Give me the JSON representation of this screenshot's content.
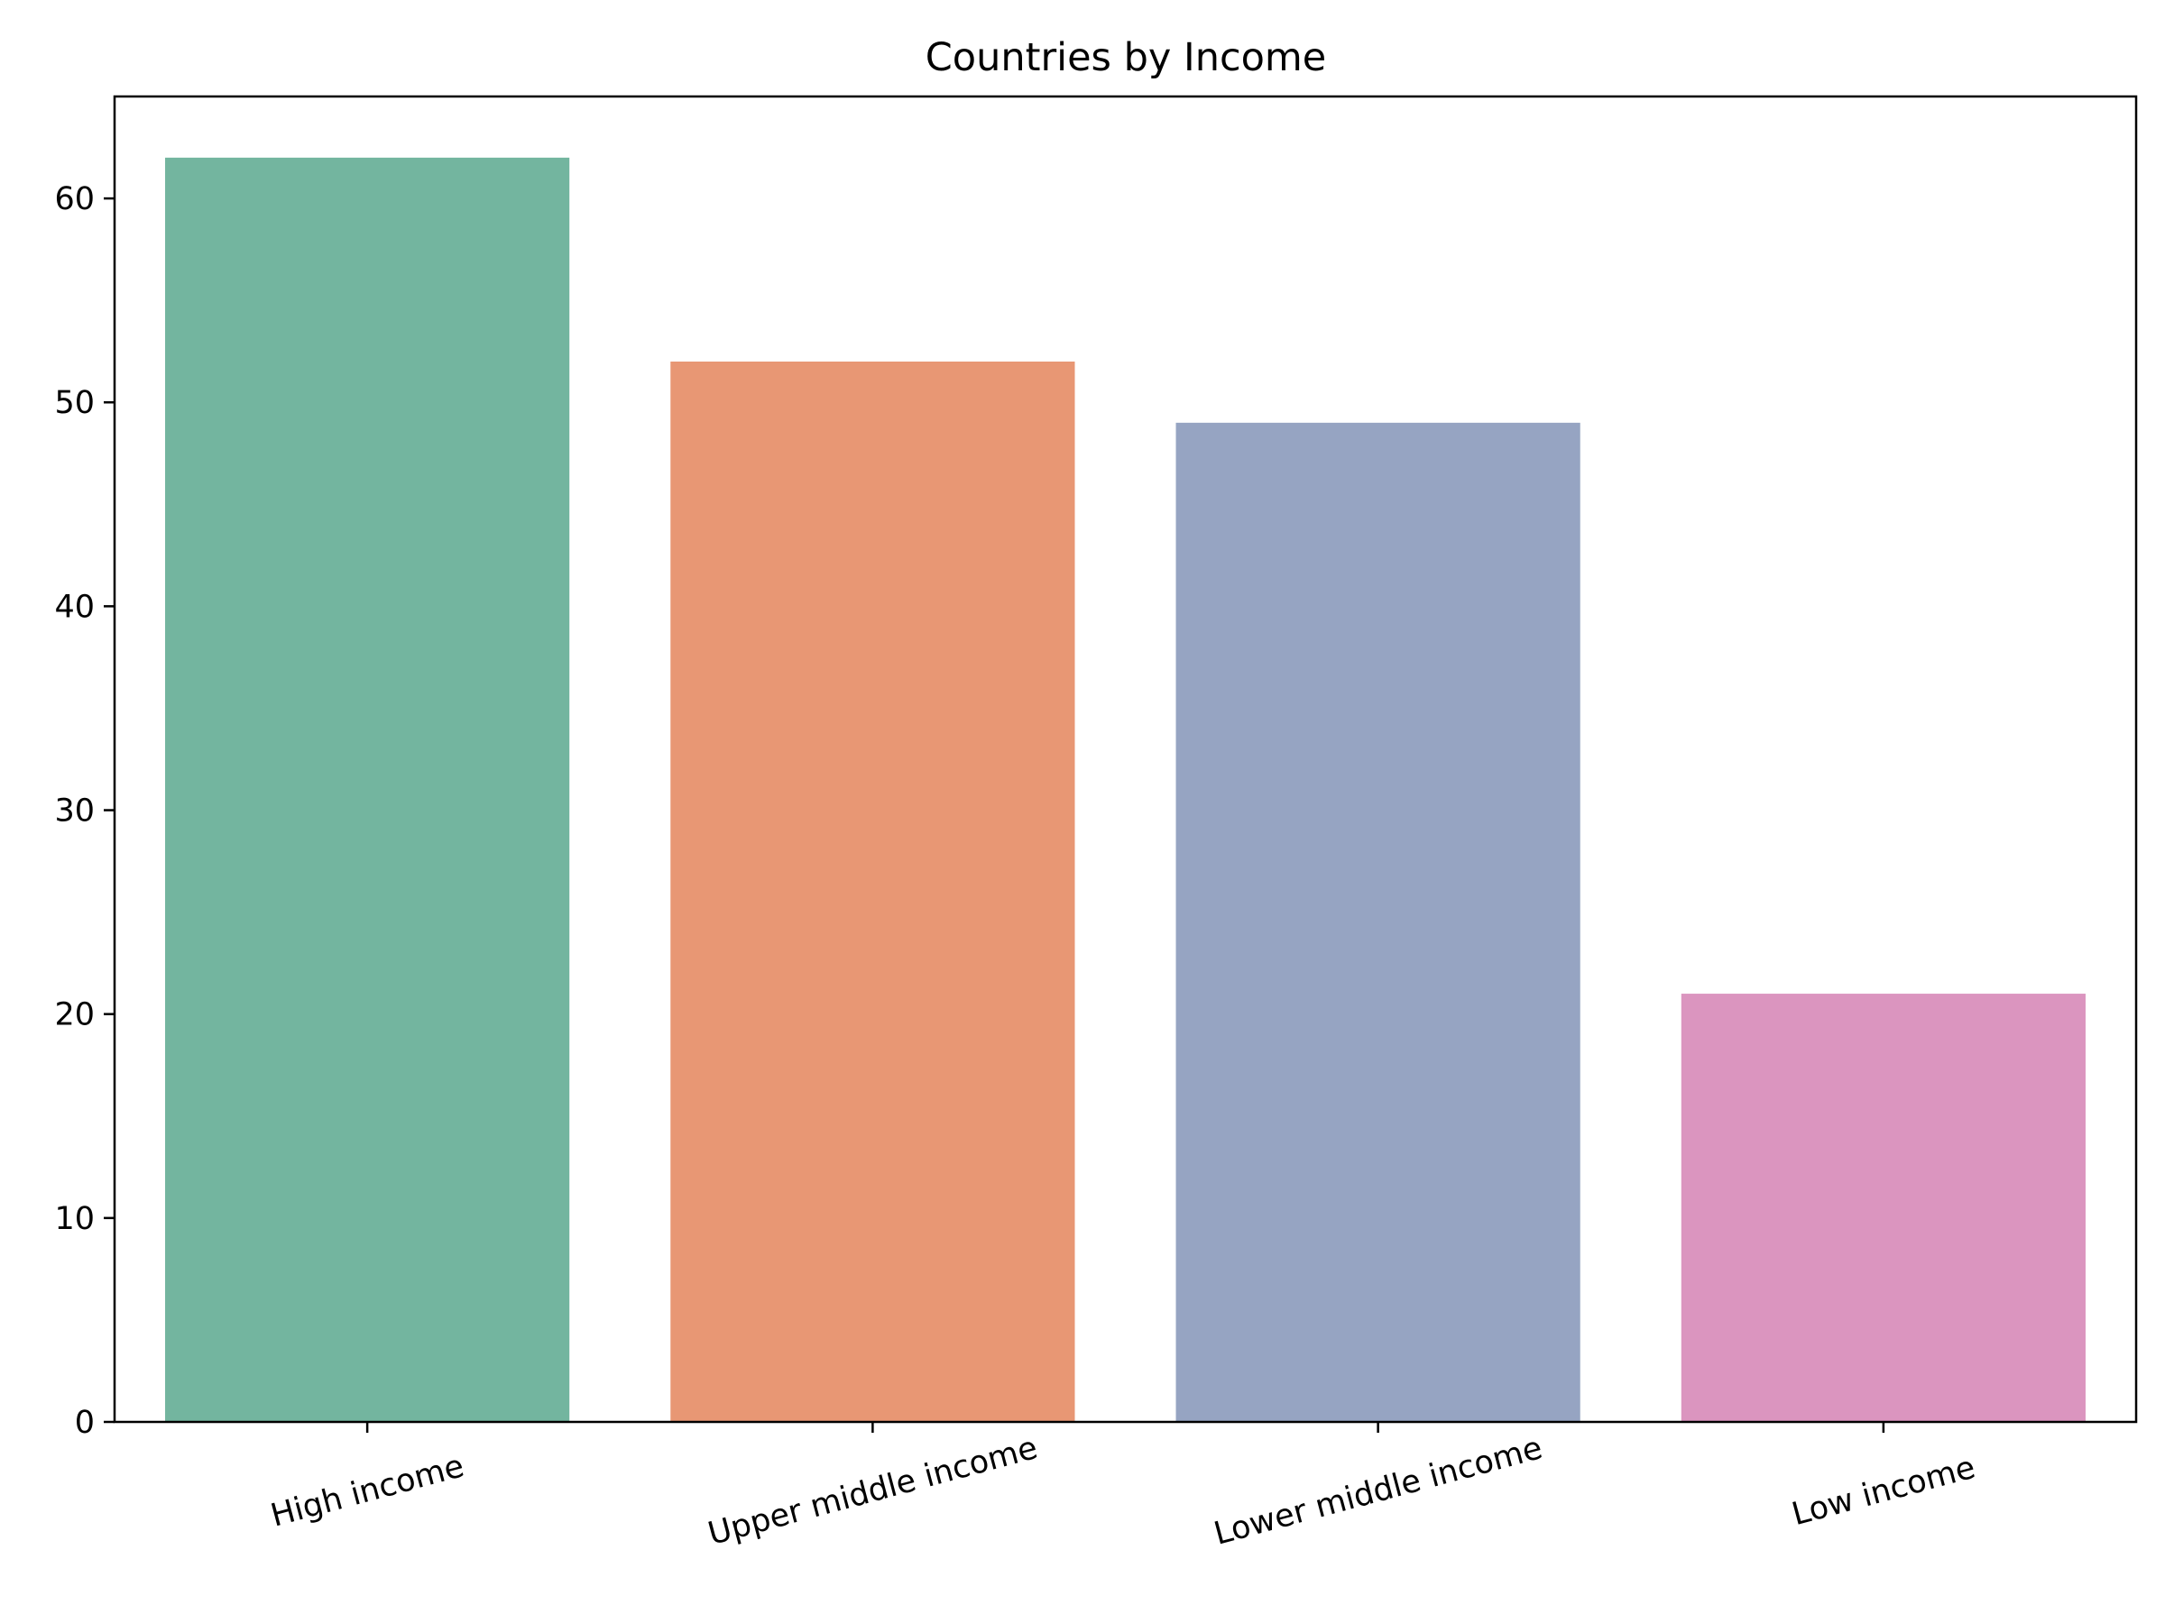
{
  "chart_data": {
    "type": "bar",
    "title": "Countries by Income",
    "xlabel": "",
    "ylabel": "",
    "categories": [
      "High income",
      "Upper middle income",
      "Lower middle income",
      "Low income"
    ],
    "values": [
      62,
      52,
      49,
      21
    ],
    "colors": [
      "#73b59f",
      "#e89774",
      "#96a4c2",
      "#db95bf"
    ],
    "ylim": [
      0,
      65
    ],
    "yticks": [
      0,
      10,
      20,
      30,
      40,
      50,
      60
    ],
    "grid": false,
    "legend": "none",
    "xtick_rotation_deg": 15
  }
}
